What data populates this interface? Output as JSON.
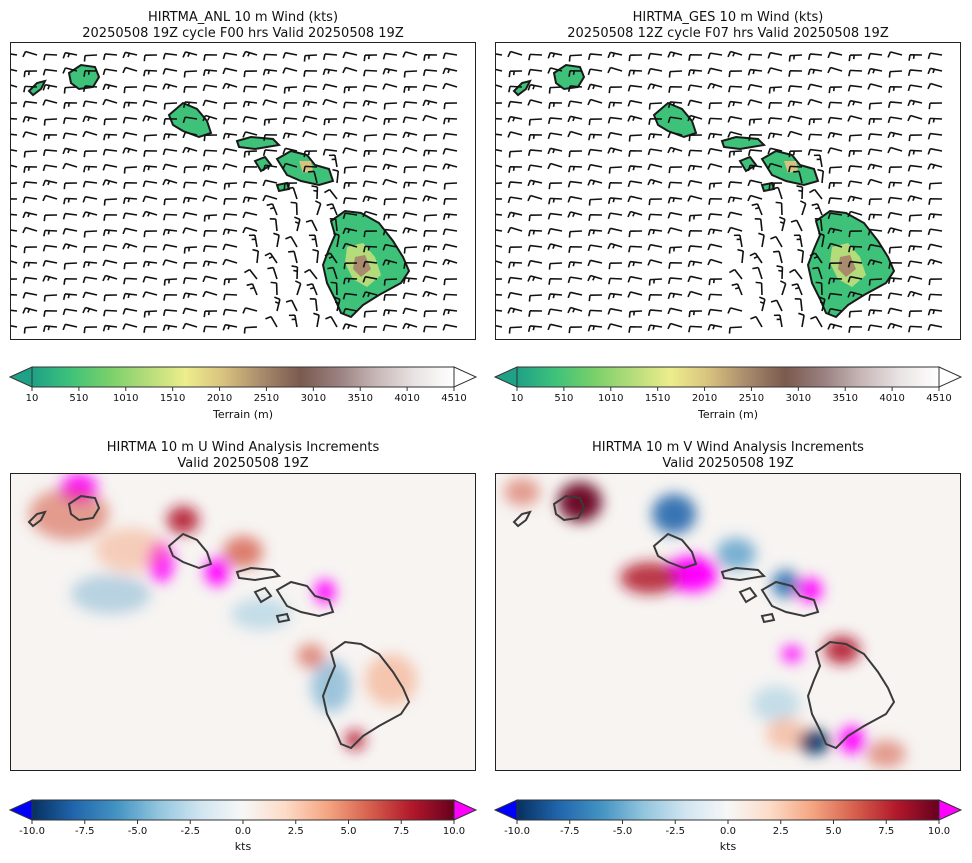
{
  "panels": [
    {
      "title1": "HIRTMA_ANL 10 m Wind (kts)",
      "title2": "20250508 19Z cycle F00 hrs Valid 20250508 19Z",
      "kind": "wind"
    },
    {
      "title1": "HIRTMA_GES 10 m Wind (kts)",
      "title2": "20250508 12Z cycle F07 hrs Valid 20250508 19Z",
      "kind": "wind"
    },
    {
      "title1": "HIRTMA 10 m U Wind Analysis Increments",
      "title2": "Valid 20250508 19Z",
      "kind": "uinc"
    },
    {
      "title1": "HIRTMA 10 m V Wind Analysis Increments",
      "title2": "Valid 20250508 19Z",
      "kind": "vinc"
    }
  ],
  "terrain_colorbar": {
    "label": "Terrain (m)",
    "ticks": [
      "10",
      "510",
      "1010",
      "1510",
      "2010",
      "2510",
      "3010",
      "3510",
      "4010",
      "4510"
    ],
    "colors": [
      "#1fa187",
      "#3ec27a",
      "#78d06a",
      "#b4dc7a",
      "#eded8c",
      "#d8c27e",
      "#a88a6c",
      "#7a5a4e",
      "#9a8080",
      "#c8b8b8",
      "#eae4e4",
      "#ffffff"
    ]
  },
  "increment_colorbar": {
    "label": "kts",
    "ticks": [
      "-10.0",
      "-7.5",
      "-5.0",
      "-2.5",
      "0.0",
      "2.5",
      "5.0",
      "7.5",
      "10.0"
    ],
    "under_color": "#0000ff",
    "over_color": "#ff00ff",
    "colors": [
      "#053061",
      "#2166ac",
      "#4393c3",
      "#92c5de",
      "#d1e5f0",
      "#f7f7f7",
      "#fddbc7",
      "#f4a582",
      "#d6604d",
      "#b2182b",
      "#67001f"
    ]
  }
}
